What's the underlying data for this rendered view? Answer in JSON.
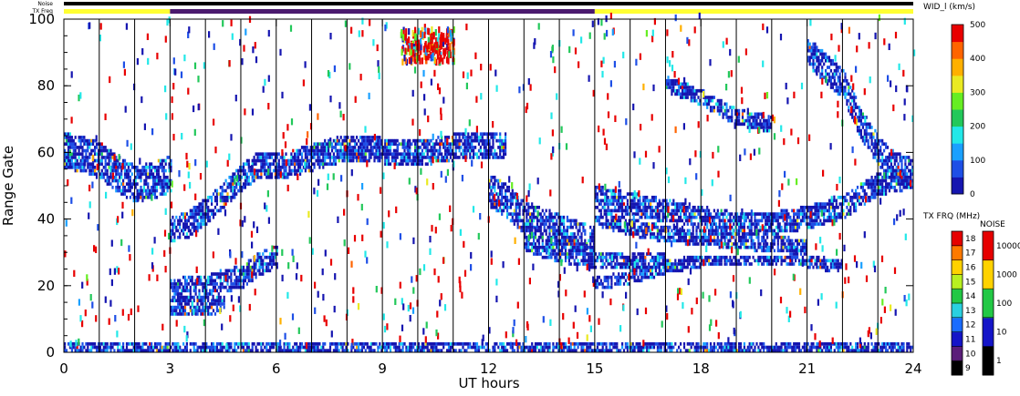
{
  "chart_data": {
    "type": "heatmap",
    "title": "",
    "xlabel": "UT hours",
    "ylabel": "Range Gate",
    "xlim": [
      0,
      24
    ],
    "ylim": [
      0,
      100
    ],
    "x_ticks": [
      "0",
      "3",
      "6",
      "9",
      "12",
      "15",
      "18",
      "21",
      "24"
    ],
    "y_ticks": [
      "0",
      "20",
      "40",
      "60",
      "80",
      "100"
    ],
    "colorbar": {
      "label": "WID_l (km/s)",
      "ticks": [
        "0",
        "100",
        "200",
        "300",
        "400",
        "500"
      ],
      "colors": [
        "#1515b0",
        "#1e4fe6",
        "#1aa0ff",
        "#22e8e8",
        "#22c85a",
        "#66ee22",
        "#eaea22",
        "#ffb000",
        "#ff6400",
        "#e80000"
      ]
    },
    "status_bars": {
      "noise_label": "Noise",
      "txfreq_label": "TX Freq",
      "segments": [
        {
          "start": 0,
          "end": 3,
          "color": "#ffff33"
        },
        {
          "start": 3,
          "end": 15,
          "color": "#4b1a6e"
        },
        {
          "start": 15,
          "end": 24,
          "color": "#ffff33"
        }
      ]
    },
    "tx_freq_legend": {
      "label": "TX FRQ (MHz)",
      "ticks": [
        "9",
        "10",
        "11",
        "12",
        "13",
        "14",
        "15",
        "16",
        "17",
        "18"
      ],
      "colors": [
        "#000000",
        "#5b1e7a",
        "#1515c8",
        "#1a6cff",
        "#2ad0e0",
        "#22c845",
        "#b8f020",
        "#ffd200",
        "#ff7a00",
        "#e60000"
      ]
    },
    "noise_legend": {
      "label": "NOISE",
      "ticks": [
        "1",
        "10",
        "100",
        "1000",
        "10000"
      ],
      "colors": [
        "#000000",
        "#1515c8",
        "#22c845",
        "#ffd200",
        "#e60000"
      ]
    },
    "data_bands": [
      {
        "name": "",
        "points": [
          [
            0,
            60
          ],
          [
            0.5,
            59
          ],
          [
            1,
            57
          ],
          [
            1.5,
            53
          ],
          [
            2,
            50
          ],
          [
            2.5,
            51
          ],
          [
            3,
            53
          ]
        ],
        "width": 9
      },
      {
        "name": "",
        "points": [
          [
            3,
            36
          ],
          [
            3.5,
            38
          ],
          [
            4,
            42
          ],
          [
            4.5,
            47
          ],
          [
            5,
            52
          ],
          [
            5.5,
            56
          ],
          [
            6,
            55
          ],
          [
            7,
            58
          ],
          [
            8,
            61
          ],
          [
            9,
            60
          ],
          [
            10,
            59
          ],
          [
            11,
            61
          ],
          [
            12,
            62
          ],
          [
            12.5,
            61
          ]
        ],
        "width": 6
      },
      {
        "name": "",
        "points": [
          [
            3,
            18
          ],
          [
            3.5,
            19
          ],
          [
            4,
            19
          ],
          [
            4.5,
            21
          ],
          [
            5,
            22
          ],
          [
            5.5,
            26
          ],
          [
            6,
            28
          ]
        ],
        "width": 5
      },
      {
        "name": "",
        "points": [
          [
            3,
            13
          ],
          [
            4,
            13
          ],
          [
            4.5,
            14
          ]
        ],
        "width": 3
      },
      {
        "name": "",
        "points": [
          [
            12,
            48
          ],
          [
            12.5,
            45
          ],
          [
            13,
            40
          ],
          [
            13.5,
            38
          ],
          [
            14,
            36
          ],
          [
            14.5,
            34
          ],
          [
            15,
            32
          ]
        ],
        "width": 8
      },
      {
        "name": "",
        "points": [
          [
            15,
            46
          ],
          [
            16,
            44
          ],
          [
            17,
            42
          ],
          [
            18,
            40
          ],
          [
            19,
            38
          ],
          [
            20,
            38
          ],
          [
            21,
            40
          ],
          [
            22,
            43
          ],
          [
            23,
            50
          ],
          [
            24,
            52
          ]
        ],
        "width": 5
      },
      {
        "name": "",
        "points": [
          [
            15,
            40
          ],
          [
            16,
            37
          ],
          [
            17,
            35
          ],
          [
            18,
            34
          ],
          [
            19,
            33
          ],
          [
            20,
            32
          ],
          [
            21,
            31
          ]
        ],
        "width": 3
      },
      {
        "name": "",
        "points": [
          [
            13,
            32
          ],
          [
            14,
            29
          ],
          [
            15,
            27
          ],
          [
            16,
            27
          ],
          [
            17,
            27
          ]
        ],
        "width": 3
      },
      {
        "name": "",
        "points": [
          [
            15,
            20
          ],
          [
            16,
            22
          ],
          [
            17,
            25
          ],
          [
            18,
            27
          ],
          [
            19,
            27
          ],
          [
            20,
            27
          ],
          [
            21,
            27
          ],
          [
            22,
            25
          ]
        ],
        "width": 2
      },
      {
        "name": "",
        "points": [
          [
            21,
            90
          ],
          [
            22,
            80
          ],
          [
            22.5,
            68
          ],
          [
            23,
            60
          ],
          [
            23.5,
            55
          ],
          [
            24,
            53
          ]
        ],
        "width": 7
      },
      {
        "name": "",
        "points": [
          [
            17,
            80
          ],
          [
            18,
            76
          ],
          [
            19,
            70
          ],
          [
            20,
            68
          ]
        ],
        "width": 3
      },
      {
        "name": "",
        "points": [
          [
            0,
            1
          ],
          [
            6,
            1
          ],
          [
            12,
            1
          ],
          [
            18,
            1
          ],
          [
            24,
            1
          ]
        ],
        "width": 2
      }
    ]
  }
}
